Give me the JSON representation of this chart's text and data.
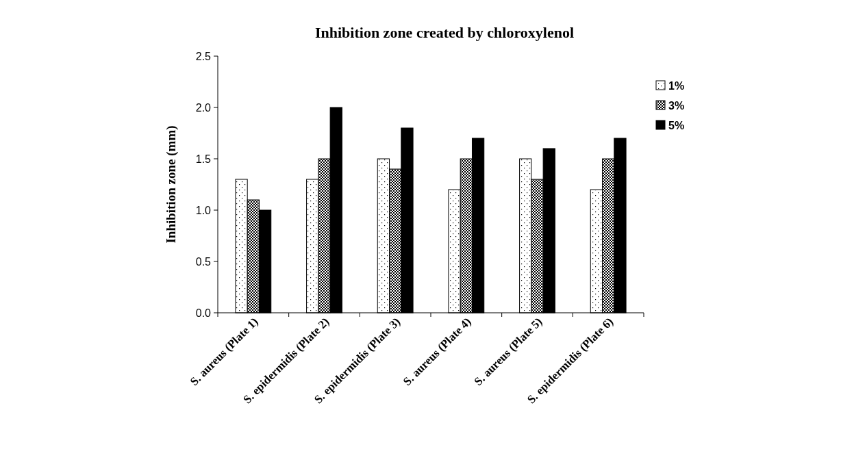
{
  "chart_data": {
    "type": "bar",
    "title": "Inhibition zone created by chloroxylenol",
    "ylabel": "Inhibition zone (mm)",
    "categories": [
      "S. aureus (Plate 1)",
      "S. epidermidis (Plate 2)",
      "S. epidermidis (Plate 3)",
      "S. aureus (Plate 4)",
      "S. aureus (Plate 5)",
      "S. epidermidis (Plate 6)"
    ],
    "series": [
      {
        "name": "1%",
        "color": "#ffffff",
        "values": [
          1.3,
          1.3,
          1.5,
          1.2,
          1.5,
          1.2
        ]
      },
      {
        "name": "3%",
        "color": "#808080",
        "values": [
          1.1,
          1.5,
          1.4,
          1.5,
          1.3,
          1.5
        ]
      },
      {
        "name": "5%",
        "color": "#000000",
        "values": [
          1.0,
          2.0,
          1.8,
          1.7,
          1.6,
          1.7
        ]
      }
    ],
    "ylim": [
      0,
      2.5
    ],
    "yticks": [
      {
        "value": 0,
        "label": "0.0"
      },
      {
        "value": 0.5,
        "label": "0.5"
      },
      {
        "value": 1,
        "label": "1.0"
      },
      {
        "value": 1.5,
        "label": "1.5"
      },
      {
        "value": 2,
        "label": "2.0"
      },
      {
        "value": 2.5,
        "label": "2.5"
      }
    ],
    "grid": false,
    "legend": "right"
  }
}
